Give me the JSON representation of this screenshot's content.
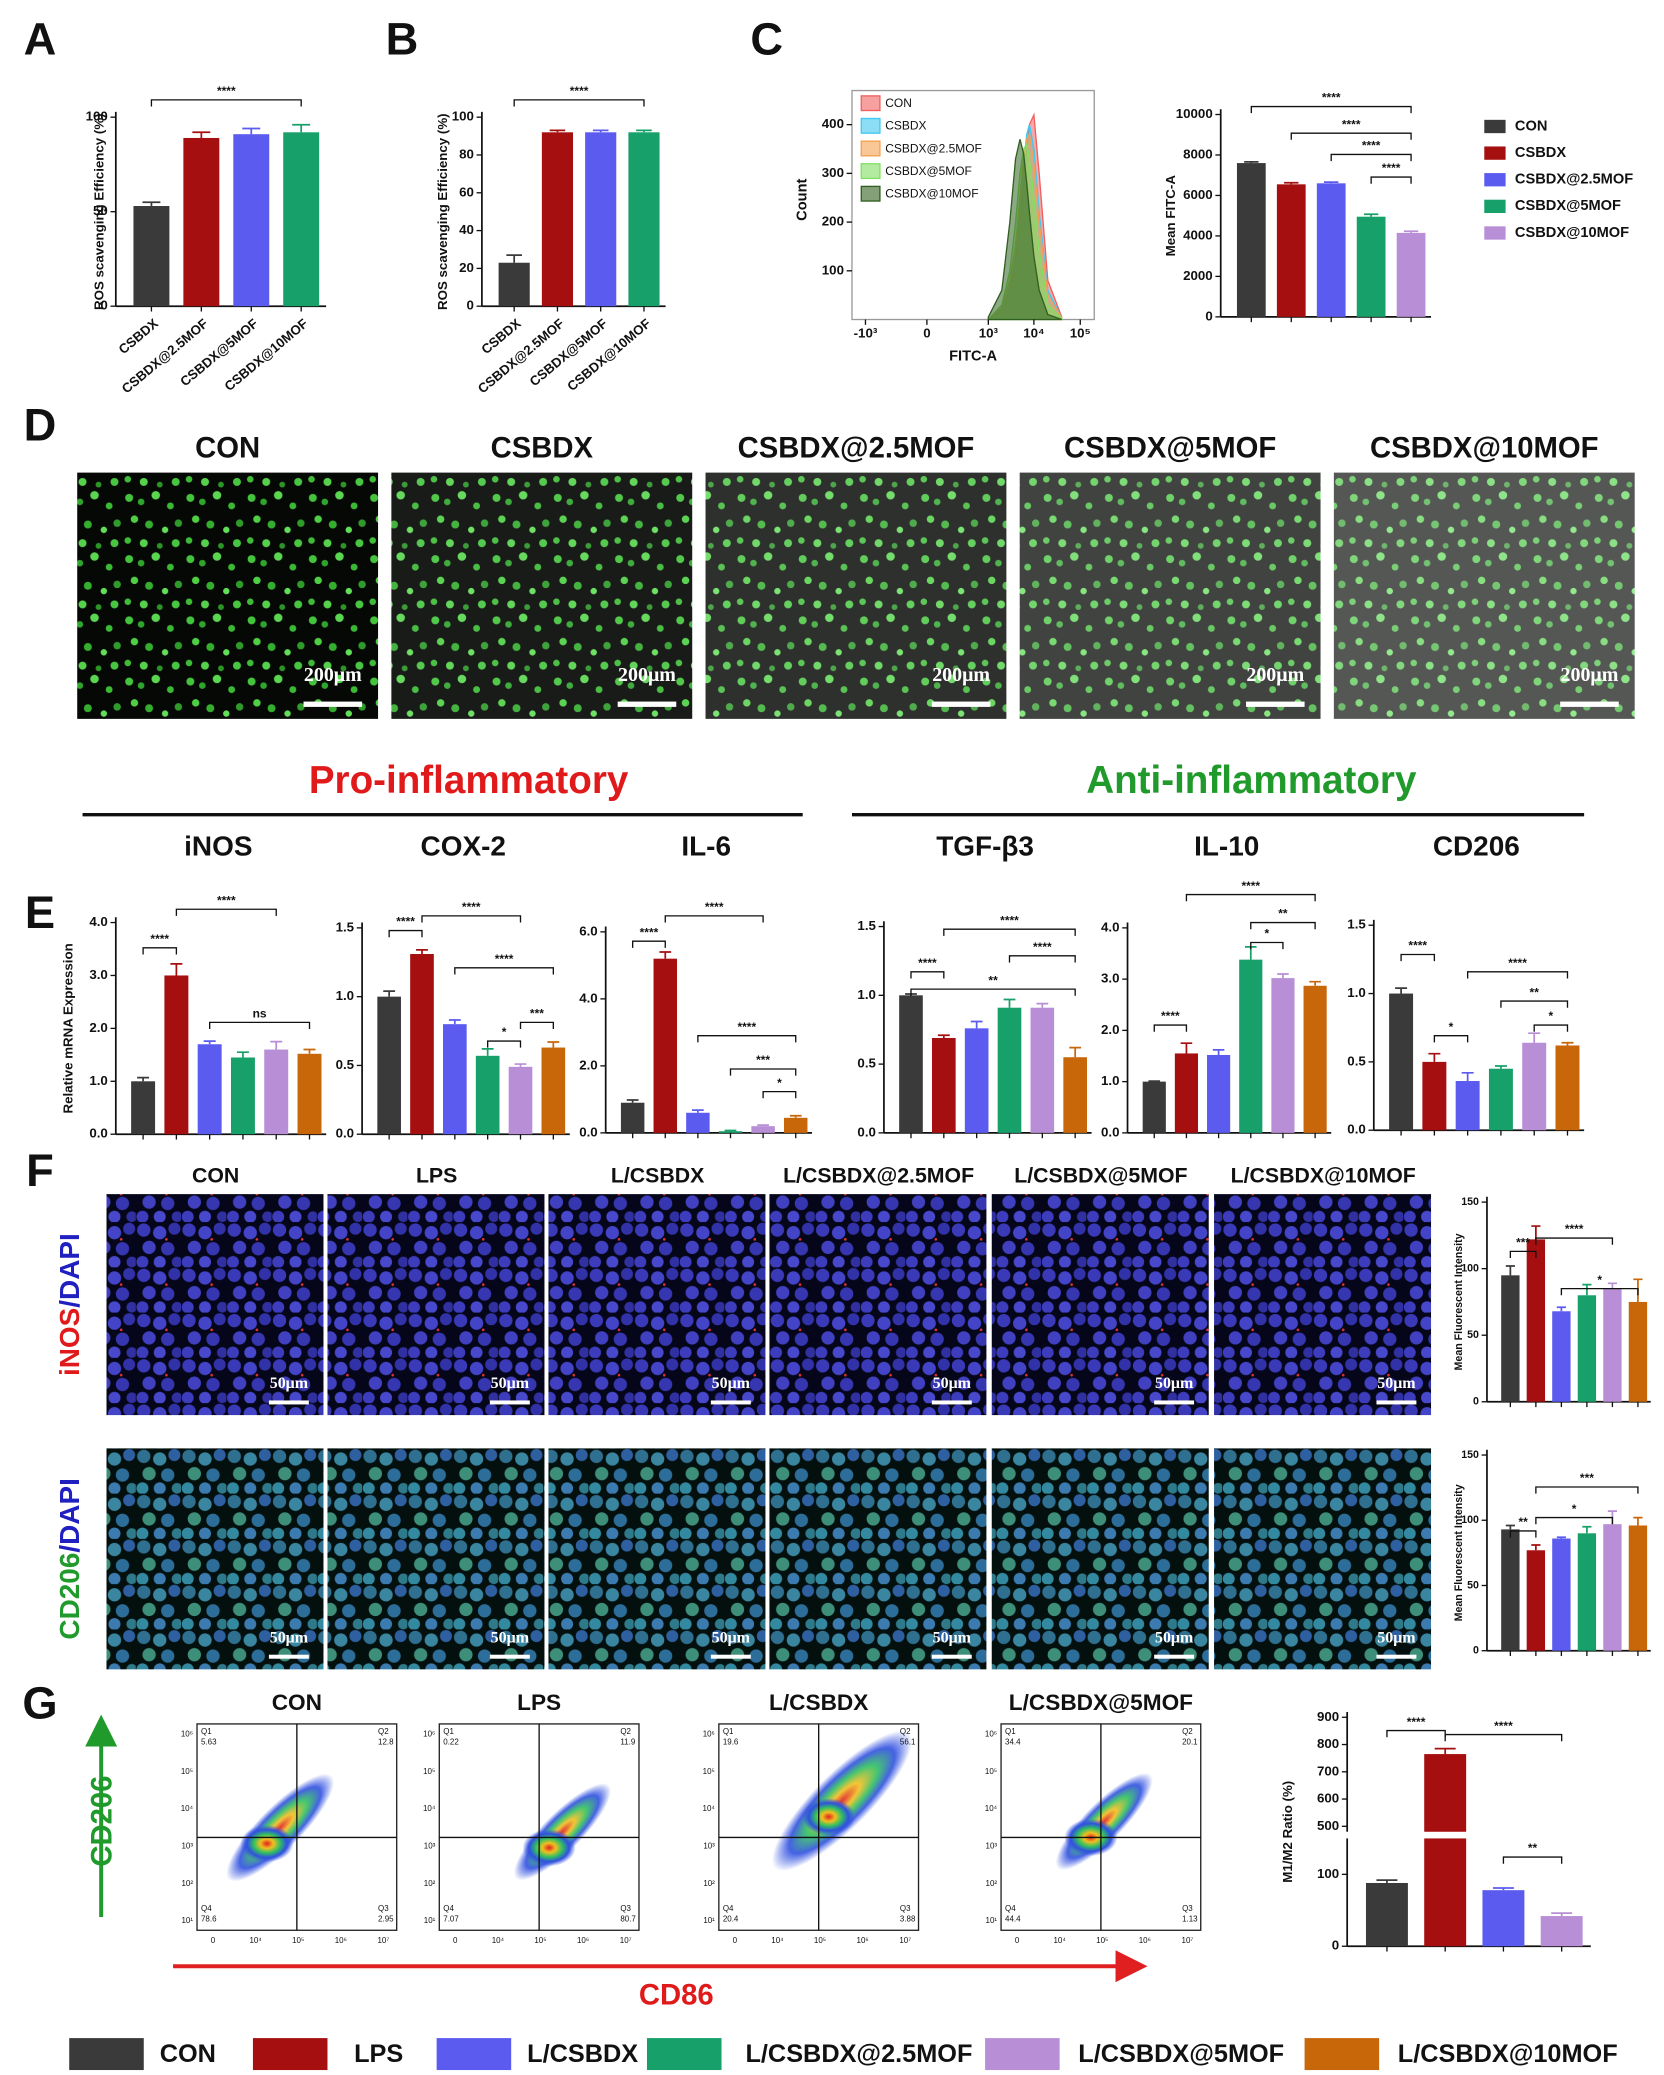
{
  "panels": [
    "A",
    "B",
    "C",
    "D",
    "E",
    "F",
    "G"
  ],
  "sections": {
    "pro": "Pro-inflammatory",
    "anti": "Anti-inflammatory"
  },
  "images": {
    "d_titles": [
      "CON",
      "CSBDX",
      "CSBDX@2.5MOF",
      "CSBDX@5MOF",
      "CSBDX@10MOF"
    ],
    "d_scale": "200μm",
    "f_titles": [
      "CON",
      "LPS",
      "L/CSBDX",
      "L/CSBDX@2.5MOF",
      "L/CSBDX@5MOF",
      "L/CSBDX@10MOF"
    ],
    "f_scale": "50μm",
    "f_rows": [
      [
        "iNOS",
        "/DAPI"
      ],
      [
        "CD206",
        "/DAPI"
      ]
    ]
  },
  "flow": {
    "titles": [
      "CON",
      "LPS",
      "L/CSBDX",
      "L/CSBDX@5MOF"
    ],
    "quadrants": [
      "Q1",
      "Q2",
      "Q3",
      "Q4"
    ],
    "values": [
      [
        5.63,
        12.8,
        2.95,
        78.6
      ],
      [
        0.22,
        11.9,
        80.7,
        7.07
      ],
      [
        19.6,
        56.1,
        3.88,
        20.4
      ],
      [
        34.4,
        20.1,
        1.13,
        44.4
      ]
    ],
    "yticks": [
      "10⁶",
      "10⁵",
      "10⁴",
      "10³",
      "10²",
      "10¹"
    ],
    "xticks": [
      "0",
      "10⁴",
      "10⁵",
      "10⁶",
      "10⁷"
    ],
    "xlabel": "CD86",
    "ylabel": "CD206"
  },
  "legend": {
    "names": [
      "CON",
      "LPS",
      "L/CSBDX",
      "L/CSBDX@2.5MOF",
      "L/CSBDX@5MOF",
      "L/CSBDX@10MOF"
    ],
    "colors": [
      "#3a3a3a",
      "#a50f0f",
      "#5b5bf0",
      "#17a06a",
      "#b88fd6",
      "#c8660a"
    ]
  },
  "chart_data": [
    {
      "type": "bar",
      "ylabel": "ROS scavenging Efficiency (%)",
      "categories": [
        "CSBDX",
        "CSBDX@2.5MOF",
        "CSBDX@5MOF",
        "CSBDX@10MOF"
      ],
      "values": [
        53,
        89,
        91,
        92
      ],
      "errors": [
        2,
        3,
        3,
        4
      ],
      "colors": [
        "#3a3a3a",
        "#a50f0f",
        "#5b5bf0",
        "#17a06a"
      ],
      "ylim": [
        0,
        100
      ],
      "yticks": [
        0,
        50,
        100
      ],
      "annotations": [
        "****"
      ]
    },
    {
      "type": "bar",
      "ylabel": "ROS scavenging Efficiency (%)",
      "categories": [
        "CSBDX",
        "CSBDX@2.5MOF",
        "CSBDX@5MOF",
        "CSBDX@10MOF"
      ],
      "values": [
        23,
        92,
        92,
        92
      ],
      "errors": [
        4,
        1,
        1,
        1
      ],
      "colors": [
        "#3a3a3a",
        "#a50f0f",
        "#5b5bf0",
        "#17a06a"
      ],
      "ylim": [
        0,
        100
      ],
      "yticks": [
        0,
        20,
        40,
        60,
        80,
        100
      ],
      "annotations": [
        "****"
      ]
    },
    {
      "type": "area",
      "xlabel": "FITC-A",
      "ylabel": "Count",
      "x": [
        1000,
        2000,
        3000,
        4000,
        5000,
        6000,
        7000,
        8000,
        10000,
        13000,
        20000,
        40000
      ],
      "series": [
        {
          "name": "CON",
          "color": "#f06060",
          "values": [
            0,
            20,
            60,
            120,
            200,
            280,
            350,
            400,
            420,
            300,
            80,
            5
          ]
        },
        {
          "name": "CSBDX",
          "color": "#40c8f0",
          "values": [
            0,
            25,
            80,
            150,
            240,
            320,
            380,
            400,
            350,
            220,
            60,
            3
          ]
        },
        {
          "name": "CSBDX@2.5MOF",
          "color": "#f5a050",
          "values": [
            0,
            25,
            80,
            150,
            250,
            330,
            370,
            380,
            320,
            200,
            50,
            3
          ]
        },
        {
          "name": "CSBDX@5MOF",
          "color": "#80e060",
          "values": [
            0,
            30,
            100,
            200,
            300,
            350,
            360,
            330,
            250,
            140,
            30,
            2
          ]
        },
        {
          "name": "CSBDX@10MOF",
          "color": "#306020",
          "values": [
            5,
            60,
            200,
            330,
            370,
            340,
            280,
            220,
            130,
            60,
            10,
            0
          ]
        }
      ],
      "xscale": "biexponential",
      "xlim": [
        -2000,
        200000
      ],
      "xticks": [
        {
          "value": -1000,
          "label": "-10³"
        },
        0,
        {
          "value": 1000,
          "label": "10³"
        },
        {
          "value": 10000,
          "label": "10⁴"
        },
        {
          "value": 100000,
          "label": "10⁵"
        }
      ],
      "ylim": [
        0,
        470
      ],
      "yticks": [
        100,
        200,
        300,
        400
      ],
      "legend": "upper left"
    },
    {
      "type": "bar",
      "ylabel": "Mean FITC-A",
      "categories": [
        "CON",
        "CSBDX",
        "CSBDX@2.5MOF",
        "CSBDX@5MOF",
        "CSBDX@10MOF"
      ],
      "values": [
        7600,
        6550,
        6600,
        4950,
        4150
      ],
      "errors": [
        60,
        80,
        60,
        120,
        80
      ],
      "colors": [
        "#3a3a3a",
        "#a50f0f",
        "#5b5bf0",
        "#17a06a",
        "#b88fd6"
      ],
      "ylim": [
        0,
        10000
      ],
      "yticks": [
        0,
        2000,
        4000,
        6000,
        8000,
        10000
      ],
      "legend": "right",
      "annotations": [
        "****",
        "****",
        "****",
        "****"
      ]
    },
    {
      "type": "bar",
      "title": "iNOS",
      "ylabel": "Relative mRNA Expression",
      "values": [
        1.0,
        3.0,
        1.7,
        1.45,
        1.6,
        1.52
      ],
      "errors": [
        0.07,
        0.22,
        0.06,
        0.1,
        0.15,
        0.08
      ],
      "colors": [
        "#3a3a3a",
        "#a50f0f",
        "#5b5bf0",
        "#17a06a",
        "#b88fd6",
        "#c8660a"
      ],
      "ylim": [
        0,
        4
      ],
      "yticks": [
        {
          "value": 0,
          "label": "0.0"
        },
        {
          "value": 1,
          "label": "1.0"
        },
        {
          "value": 2,
          "label": "2.0"
        },
        {
          "value": 3,
          "label": "3.0"
        },
        {
          "value": 4,
          "label": "4.0"
        }
      ],
      "annotations": [
        "****",
        "****",
        "ns"
      ]
    },
    {
      "type": "bar",
      "title": "COX-2",
      "values": [
        1.0,
        1.31,
        0.8,
        0.57,
        0.49,
        0.63
      ],
      "errors": [
        0.04,
        0.03,
        0.03,
        0.05,
        0.02,
        0.04
      ],
      "colors": [
        "#3a3a3a",
        "#a50f0f",
        "#5b5bf0",
        "#17a06a",
        "#b88fd6",
        "#c8660a"
      ],
      "ylim": [
        0,
        1.5
      ],
      "yticks": [
        {
          "value": 0,
          "label": "0.0"
        },
        0.5,
        {
          "value": 1,
          "label": "1.0"
        },
        1.5
      ],
      "annotations": [
        "****",
        "****",
        "****",
        "*",
        "***"
      ]
    },
    {
      "type": "bar",
      "title": "IL-6",
      "values": [
        0.9,
        5.2,
        0.6,
        0.05,
        0.2,
        0.45
      ],
      "errors": [
        0.08,
        0.2,
        0.08,
        0.02,
        0.03,
        0.06
      ],
      "colors": [
        "#3a3a3a",
        "#a50f0f",
        "#5b5bf0",
        "#17a06a",
        "#b88fd6",
        "#c8660a"
      ],
      "ylim": [
        0,
        6
      ],
      "yticks": [
        {
          "value": 0,
          "label": "0.0"
        },
        {
          "value": 2,
          "label": "2.0"
        },
        {
          "value": 4,
          "label": "4.0"
        },
        {
          "value": 6,
          "label": "6.0"
        }
      ],
      "annotations": [
        "****",
        "****",
        "****",
        "***",
        "*"
      ]
    },
    {
      "type": "bar",
      "title": "TGF-β3",
      "values": [
        1.0,
        0.69,
        0.76,
        0.91,
        0.91,
        0.55
      ],
      "errors": [
        0.01,
        0.02,
        0.05,
        0.06,
        0.03,
        0.07
      ],
      "colors": [
        "#3a3a3a",
        "#a50f0f",
        "#5b5bf0",
        "#17a06a",
        "#b88fd6",
        "#c8660a"
      ],
      "ylim": [
        0,
        1.5
      ],
      "yticks": [
        {
          "value": 0,
          "label": "0.0"
        },
        0.5,
        {
          "value": 1,
          "label": "1.0"
        },
        1.5
      ],
      "annotations": [
        "****",
        "****",
        "****",
        "**"
      ]
    },
    {
      "type": "bar",
      "title": "IL-10",
      "values": [
        1.0,
        1.55,
        1.52,
        3.38,
        3.02,
        2.87
      ],
      "errors": [
        0.01,
        0.2,
        0.1,
        0.25,
        0.08,
        0.08
      ],
      "colors": [
        "#3a3a3a",
        "#a50f0f",
        "#5b5bf0",
        "#17a06a",
        "#b88fd6",
        "#c8660a"
      ],
      "ylim": [
        0,
        4
      ],
      "yticks": [
        {
          "value": 0,
          "label": "0.0"
        },
        {
          "value": 1,
          "label": "1.0"
        },
        {
          "value": 2,
          "label": "2.0"
        },
        {
          "value": 3,
          "label": "3.0"
        },
        {
          "value": 4,
          "label": "4.0"
        }
      ],
      "annotations": [
        "****",
        "****",
        "**",
        "*"
      ]
    },
    {
      "type": "bar",
      "title": "CD206",
      "values": [
        1.0,
        0.5,
        0.36,
        0.45,
        0.64,
        0.62
      ],
      "errors": [
        0.04,
        0.06,
        0.06,
        0.02,
        0.07,
        0.02
      ],
      "colors": [
        "#3a3a3a",
        "#a50f0f",
        "#5b5bf0",
        "#17a06a",
        "#b88fd6",
        "#c8660a"
      ],
      "ylim": [
        0,
        1.5
      ],
      "yticks": [
        {
          "value": 0,
          "label": "0.0"
        },
        0.5,
        {
          "value": 1,
          "label": "1.0"
        },
        1.5
      ],
      "annotations": [
        "****",
        "*",
        "****",
        "**",
        "*"
      ]
    },
    {
      "type": "bar",
      "ylabel": "Mean Fluorescent Intensity",
      "values": [
        95,
        122,
        68,
        80,
        85,
        75
      ],
      "errors": [
        7,
        10,
        3,
        8,
        4,
        17
      ],
      "colors": [
        "#3a3a3a",
        "#a50f0f",
        "#5b5bf0",
        "#17a06a",
        "#b88fd6",
        "#c8660a"
      ],
      "ylim": [
        0,
        150
      ],
      "yticks": [
        0,
        50,
        100,
        150
      ],
      "annotations": [
        "***",
        "****",
        "*"
      ]
    },
    {
      "type": "bar",
      "ylabel": "Mean Fluorescent Intensity",
      "values": [
        93,
        77,
        86,
        90,
        97,
        96
      ],
      "errors": [
        3,
        4,
        1,
        5,
        10,
        6
      ],
      "colors": [
        "#3a3a3a",
        "#a50f0f",
        "#5b5bf0",
        "#17a06a",
        "#b88fd6",
        "#c8660a"
      ],
      "ylim": [
        0,
        150
      ],
      "yticks": [
        0,
        50,
        100,
        150
      ],
      "annotations": [
        "**",
        "*",
        "***"
      ]
    },
    {
      "type": "bar",
      "ylabel": "M1/M2 Ratio (%)",
      "values": [
        88,
        765,
        78,
        42
      ],
      "errors": [
        4,
        20,
        3,
        4
      ],
      "colors": [
        "#3a3a3a",
        "#a50f0f",
        "#5b5bf0",
        "#b88fd6"
      ],
      "ylim": [
        0,
        900
      ],
      "axis_break": [
        150,
        480
      ],
      "yticks": [
        0,
        100,
        500,
        600,
        700,
        800,
        900
      ],
      "annotations": [
        "****",
        "****",
        "**"
      ]
    }
  ]
}
